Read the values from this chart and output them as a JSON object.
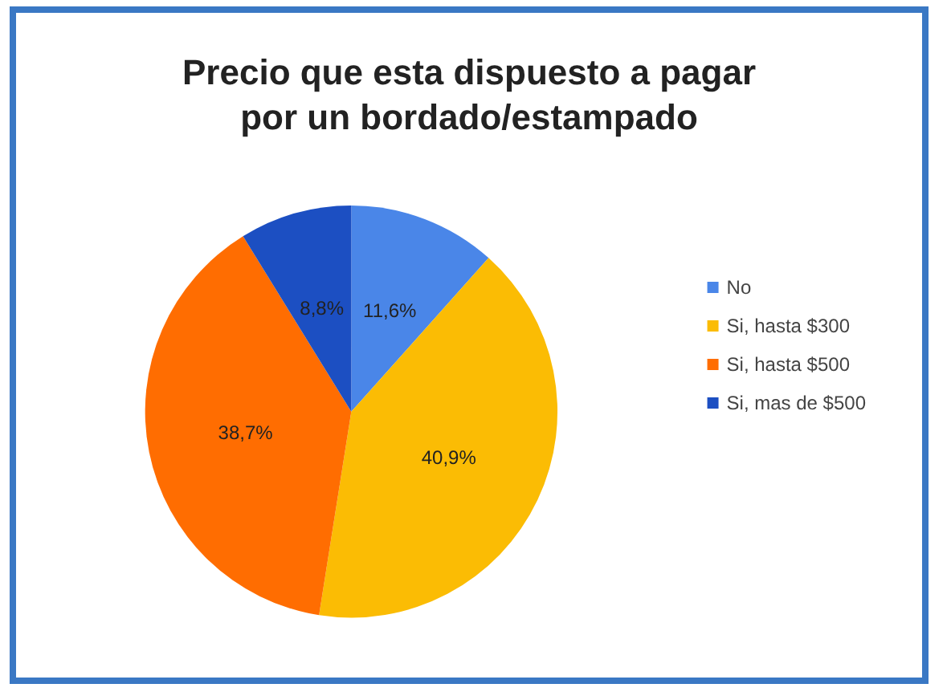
{
  "chart_data": {
    "type": "pie",
    "title": "Precio que esta dispuesto a pagar\npor un bordado/estampado",
    "categories": [
      "No",
      "Si, hasta $300",
      "Si, hasta $500",
      "Si, mas de $500"
    ],
    "values": [
      11.6,
      40.9,
      38.7,
      8.8
    ],
    "value_labels": [
      "11,6%",
      "40,9%",
      "38,7%",
      "8,8%"
    ],
    "colors": [
      "#4a86e8",
      "#fbbc04",
      "#ff6d01",
      "#1c4fc2"
    ],
    "legend": "right"
  }
}
